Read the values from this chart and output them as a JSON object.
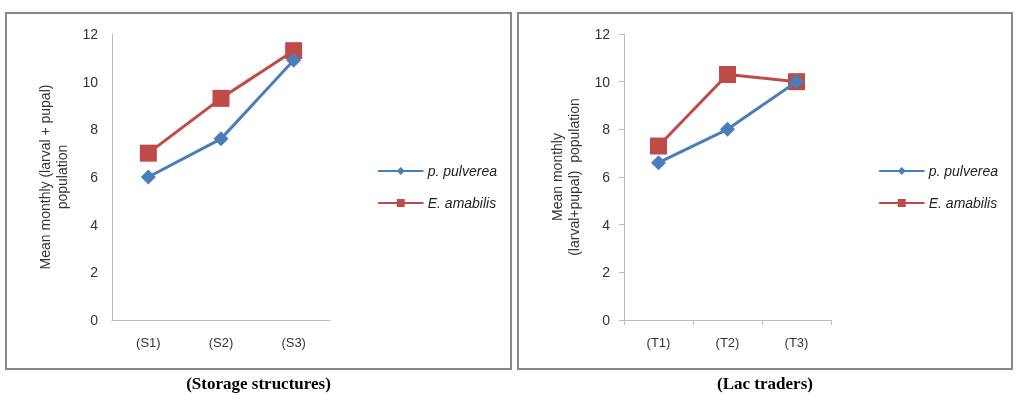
{
  "chart_data": [
    {
      "type": "line",
      "xlabel": "(Storage structures)",
      "ylabel": "Mean monthly (larval + pupal)\npopulation",
      "categories": [
        "(S1)",
        "(S2)",
        "(S3)"
      ],
      "ylim": [
        0,
        12
      ],
      "yticks": [
        0,
        2,
        4,
        6,
        8,
        10,
        12
      ],
      "grid": false,
      "legend": "right",
      "line_style": "solid",
      "series": [
        {
          "name": "p. pulverea",
          "color": "#4a7ebb",
          "marker": "diamond",
          "values": [
            6,
            7.6,
            10.9
          ]
        },
        {
          "name": "E. amabilis",
          "color": "#be4b48",
          "marker": "square",
          "values": [
            7,
            9.3,
            11.3
          ]
        }
      ]
    },
    {
      "type": "line",
      "xlabel": "(Lac traders)",
      "ylabel": "Mean monthly\n(larval+pupal)  population",
      "categories": [
        "(T1)",
        "(T2)",
        "(T3)"
      ],
      "ylim": [
        0,
        12
      ],
      "yticks": [
        0,
        2,
        4,
        6,
        8,
        10,
        12
      ],
      "grid": false,
      "legend": "right",
      "line_style": "solid",
      "series": [
        {
          "name": "p. pulverea",
          "color": "#4a7ebb",
          "marker": "diamond",
          "values": [
            6.6,
            8,
            10
          ]
        },
        {
          "name": "E. amabilis",
          "color": "#be4b48",
          "marker": "square",
          "values": [
            7.3,
            10.3,
            10
          ]
        }
      ]
    }
  ]
}
